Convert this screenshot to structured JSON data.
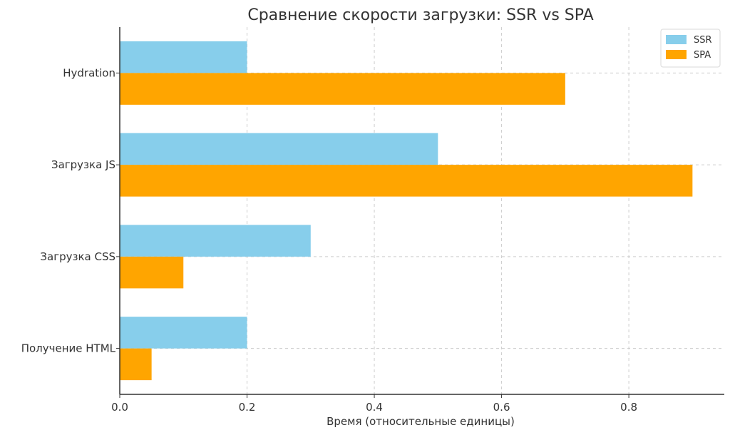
{
  "chart_data": {
    "type": "bar",
    "orientation": "horizontal",
    "title": "Сравнение скорости загрузки: SSR vs SPA",
    "xlabel": "Время (относительные единицы)",
    "ylabel": "",
    "categories": [
      "Hydration",
      "Загрузка JS",
      "Загрузка CSS",
      "Получение HTML"
    ],
    "series": [
      {
        "name": "SSR",
        "color": "#87CEEB",
        "values": [
          0.2,
          0.5,
          0.3,
          0.2
        ]
      },
      {
        "name": "SPA",
        "color": "#FFA500",
        "values": [
          0.7,
          0.9,
          0.1,
          0.05
        ]
      }
    ],
    "xlim": [
      0,
      0.95
    ],
    "xticks": [
      "0.0",
      "0.2",
      "0.4",
      "0.6",
      "0.8"
    ],
    "grid": true,
    "legend_position": "top-right"
  }
}
